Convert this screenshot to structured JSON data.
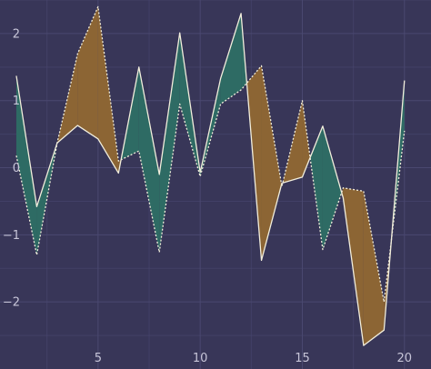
{
  "chart_data": {
    "type": "area",
    "title": "",
    "xlabel": "",
    "ylabel": "",
    "xlim": [
      0.2,
      21.3
    ],
    "ylim": [
      -3.0,
      2.5
    ],
    "grid": true,
    "x": [
      1,
      2,
      3,
      4,
      5,
      6,
      7,
      8,
      9,
      10,
      11,
      12,
      13,
      14,
      15,
      16,
      17,
      18,
      19,
      20
    ],
    "x_ticks": [
      5,
      10,
      15,
      20
    ],
    "y_ticks": [
      -2,
      -1,
      0,
      1,
      2
    ],
    "series": [
      {
        "line_style": "solid",
        "values": [
          1.37,
          -0.58,
          0.37,
          0.63,
          0.43,
          -0.08,
          1.5,
          -0.1,
          2.01,
          -0.07,
          1.33,
          2.3,
          -1.38,
          -0.23,
          -0.14,
          0.62,
          -0.45,
          -2.65,
          -2.42,
          1.3
        ]
      },
      {
        "line_style": "dotted",
        "values": [
          0.18,
          -1.3,
          0.37,
          1.7,
          2.4,
          0.1,
          0.25,
          -1.26,
          0.95,
          -0.13,
          0.95,
          1.16,
          1.52,
          -0.28,
          1.0,
          -1.22,
          -0.3,
          -0.35,
          -2.0,
          0.55
        ]
      }
    ],
    "fill_colors": {
      "first_above": "#2e6b64",
      "second_above": "#8c6534"
    },
    "line_color": "#f2eedc",
    "colors": {
      "background": "#383658",
      "grid": "#4a4870",
      "tick_text": "#c7c5d8"
    }
  }
}
